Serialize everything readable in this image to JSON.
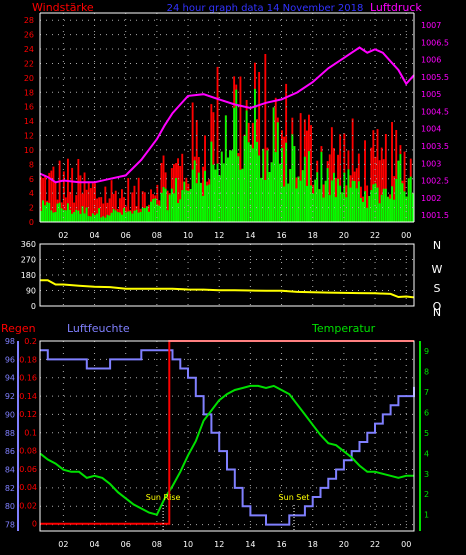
{
  "header": {
    "left_title": "Windstärke",
    "center_title": "24 hour graph data 14 November 2018",
    "right_title": "Luftdruck"
  },
  "colors": {
    "bg": "#000000",
    "wind_gust": "#ff0000",
    "wind_avg": "#00ff00",
    "pressure": "#ff00ff",
    "wind_dir": "#ffff00",
    "humidity": "#8080ff",
    "temperature": "#00e000",
    "rain": "#ff0000",
    "axis": "#ffffff",
    "center_title": "#3333ff",
    "sun_label": "#ffff00"
  },
  "chart_data": [
    {
      "type": "bar",
      "name": "wind-pressure",
      "x_ticks": [
        "02",
        "04",
        "06",
        "08",
        "10",
        "12",
        "14",
        "16",
        "18",
        "20",
        "22",
        "00"
      ],
      "y_left_ticks": [
        "0",
        "2",
        "4",
        "6",
        "8",
        "10",
        "12",
        "14",
        "16",
        "18",
        "20",
        "22",
        "24",
        "26",
        "28"
      ],
      "y_left_lim": [
        0,
        29
      ],
      "y_right_ticks": [
        "1001.5",
        "1002",
        "1002.5",
        "1003",
        "1003.5",
        "1004",
        "1004.5",
        "1005",
        "1005.5",
        "1006",
        "1006.5",
        "1007"
      ],
      "y_right_lim": [
        1001.3,
        1007.35
      ],
      "x_hours": [
        0.5,
        24.5
      ],
      "wind_gust_profile": {
        "hours": [
          0,
          2,
          4,
          6,
          7,
          8,
          9,
          10,
          11,
          12,
          13,
          14,
          15,
          16,
          17,
          18,
          19,
          20,
          21,
          22,
          23,
          24
        ],
        "max": [
          10,
          10,
          8,
          7,
          6,
          12,
          12,
          16,
          20,
          24,
          29,
          24,
          24,
          22,
          20,
          18,
          17,
          16,
          14,
          13,
          14,
          14
        ]
      },
      "wind_avg_profile": {
        "hours": [
          0,
          2,
          4,
          6,
          7,
          8,
          9,
          10,
          11,
          12,
          13,
          14,
          15,
          16,
          17,
          18,
          19,
          20,
          21,
          22,
          23,
          24
        ],
        "max": [
          3,
          3,
          2,
          2,
          2,
          4,
          6,
          8,
          12,
          16,
          24,
          20,
          18,
          14,
          12,
          11,
          10,
          8,
          7,
          6,
          8,
          13
        ]
      },
      "pressure": {
        "hours": [
          0.5,
          1,
          1.5,
          2,
          3,
          4,
          5,
          6,
          7,
          8,
          8.5,
          9,
          9.5,
          10,
          11,
          12,
          13,
          14,
          15,
          16,
          17,
          18,
          19,
          20,
          20.5,
          21,
          21.5,
          22,
          22.5,
          23,
          23.5,
          24,
          24.5
        ],
        "values": [
          1002.7,
          1002.6,
          1002.45,
          1002.5,
          1002.45,
          1002.45,
          1002.55,
          1002.65,
          1003.1,
          1003.7,
          1004.1,
          1004.45,
          1004.7,
          1004.95,
          1005.0,
          1004.85,
          1004.7,
          1004.6,
          1004.75,
          1004.85,
          1005.05,
          1005.35,
          1005.75,
          1006.05,
          1006.2,
          1006.35,
          1006.2,
          1006.3,
          1006.2,
          1005.95,
          1005.7,
          1005.3,
          1005.55
        ]
      }
    },
    {
      "type": "line",
      "name": "wind-direction",
      "y_ticks": [
        "0",
        "90",
        "180",
        "270",
        "360"
      ],
      "y_lim": [
        0,
        360
      ],
      "right_labels": [
        "N",
        "W",
        "S",
        "O",
        "N"
      ],
      "hours": [
        0.5,
        1,
        1.5,
        2,
        3,
        4,
        5,
        6,
        7,
        8,
        9,
        10,
        11,
        12,
        13,
        14,
        15,
        16,
        17,
        18,
        19,
        20,
        21,
        22,
        23,
        23.5,
        24,
        24.5
      ],
      "values": [
        150,
        150,
        125,
        125,
        118,
        112,
        110,
        100,
        100,
        100,
        100,
        96,
        95,
        92,
        92,
        90,
        88,
        88,
        82,
        80,
        78,
        76,
        75,
        74,
        70,
        52,
        55,
        50
      ]
    },
    {
      "type": "line",
      "name": "humidity-temperature-rain",
      "left_title": "Regen",
      "humidity_title": "Luftfeuchte",
      "temperature_title": "Temperatur",
      "humidity_ticks": [
        "78",
        "80",
        "82",
        "84",
        "86",
        "88",
        "90",
        "92",
        "94",
        "96",
        "98"
      ],
      "humidity_lim": [
        77.3,
        98
      ],
      "rain_ticks": [
        "0",
        "0.02",
        "0.04",
        "0.06",
        "0.08",
        "0.1",
        "0.12",
        "0.14",
        "0.16",
        "0.18",
        "0.2"
      ],
      "rain_lim": [
        -0.008,
        0.2
      ],
      "temperature_ticks": [
        "1",
        "2",
        "3",
        "4",
        "5",
        "6",
        "7",
        "8",
        "9"
      ],
      "temperature_lim": [
        0.2,
        9.5
      ],
      "humidity": {
        "hours": [
          0.5,
          1,
          1.5,
          2,
          2.5,
          3,
          3.5,
          4,
          4.5,
          5,
          5.5,
          6,
          6.5,
          7,
          7.5,
          8,
          8.5,
          9,
          9.5,
          10,
          10.5,
          11,
          11.5,
          12,
          12.5,
          13,
          13.5,
          14,
          14.5,
          15,
          15.5,
          16,
          16.5,
          17,
          17.5,
          18,
          18.5,
          19,
          19.5,
          20,
          20.5,
          21,
          21.5,
          22,
          22.5,
          23,
          23.5,
          24,
          24.5
        ],
        "values": [
          97,
          96,
          96,
          96,
          96,
          96,
          95,
          95,
          95,
          96,
          96,
          96,
          96,
          97,
          97,
          97,
          97,
          96,
          95,
          94,
          92,
          90,
          88,
          86,
          84,
          82,
          80,
          79,
          79,
          78,
          78,
          78,
          79,
          79,
          80,
          81,
          82,
          83,
          84,
          85,
          86,
          87,
          88,
          89,
          90,
          91,
          92,
          92,
          93
        ]
      },
      "temperature": {
        "hours": [
          0.5,
          1,
          1.5,
          2,
          2.5,
          3,
          3.5,
          4,
          4.5,
          5,
          5.5,
          6,
          6.5,
          7,
          7.5,
          8,
          8.5,
          9,
          9.5,
          10,
          10.5,
          11,
          11.5,
          12,
          12.5,
          13,
          13.5,
          14,
          14.5,
          15,
          15.5,
          16,
          16.5,
          17,
          17.5,
          18,
          18.5,
          19,
          19.5,
          20,
          20.5,
          21,
          21.5,
          22,
          22.5,
          23,
          23.5,
          24,
          24.5
        ],
        "values": [
          4.0,
          3.7,
          3.5,
          3.2,
          3.1,
          3.1,
          2.8,
          2.9,
          2.8,
          2.5,
          2.1,
          1.8,
          1.5,
          1.3,
          1.1,
          1.0,
          1.8,
          2.4,
          3.1,
          3.9,
          4.6,
          5.6,
          6.1,
          6.6,
          6.9,
          7.1,
          7.2,
          7.3,
          7.3,
          7.2,
          7.3,
          7.1,
          6.9,
          6.4,
          5.9,
          5.4,
          4.9,
          4.5,
          4.4,
          4.1,
          3.8,
          3.4,
          3.1,
          3.1,
          3.0,
          2.9,
          2.8,
          2.9,
          2.9
        ]
      },
      "rain": {
        "hours": [
          0.5,
          8.8,
          8.8,
          24.5
        ],
        "values": [
          0,
          0,
          0.2,
          0.2
        ]
      },
      "sunrise_label": "Sun Rise",
      "sunset_label": "Sun Set",
      "sunrise_hour": 8.4,
      "sunset_hour": 16.8,
      "x_ticks": [
        "02",
        "04",
        "06",
        "08",
        "10",
        "12",
        "14",
        "16",
        "18",
        "20",
        "22",
        "00"
      ]
    }
  ]
}
